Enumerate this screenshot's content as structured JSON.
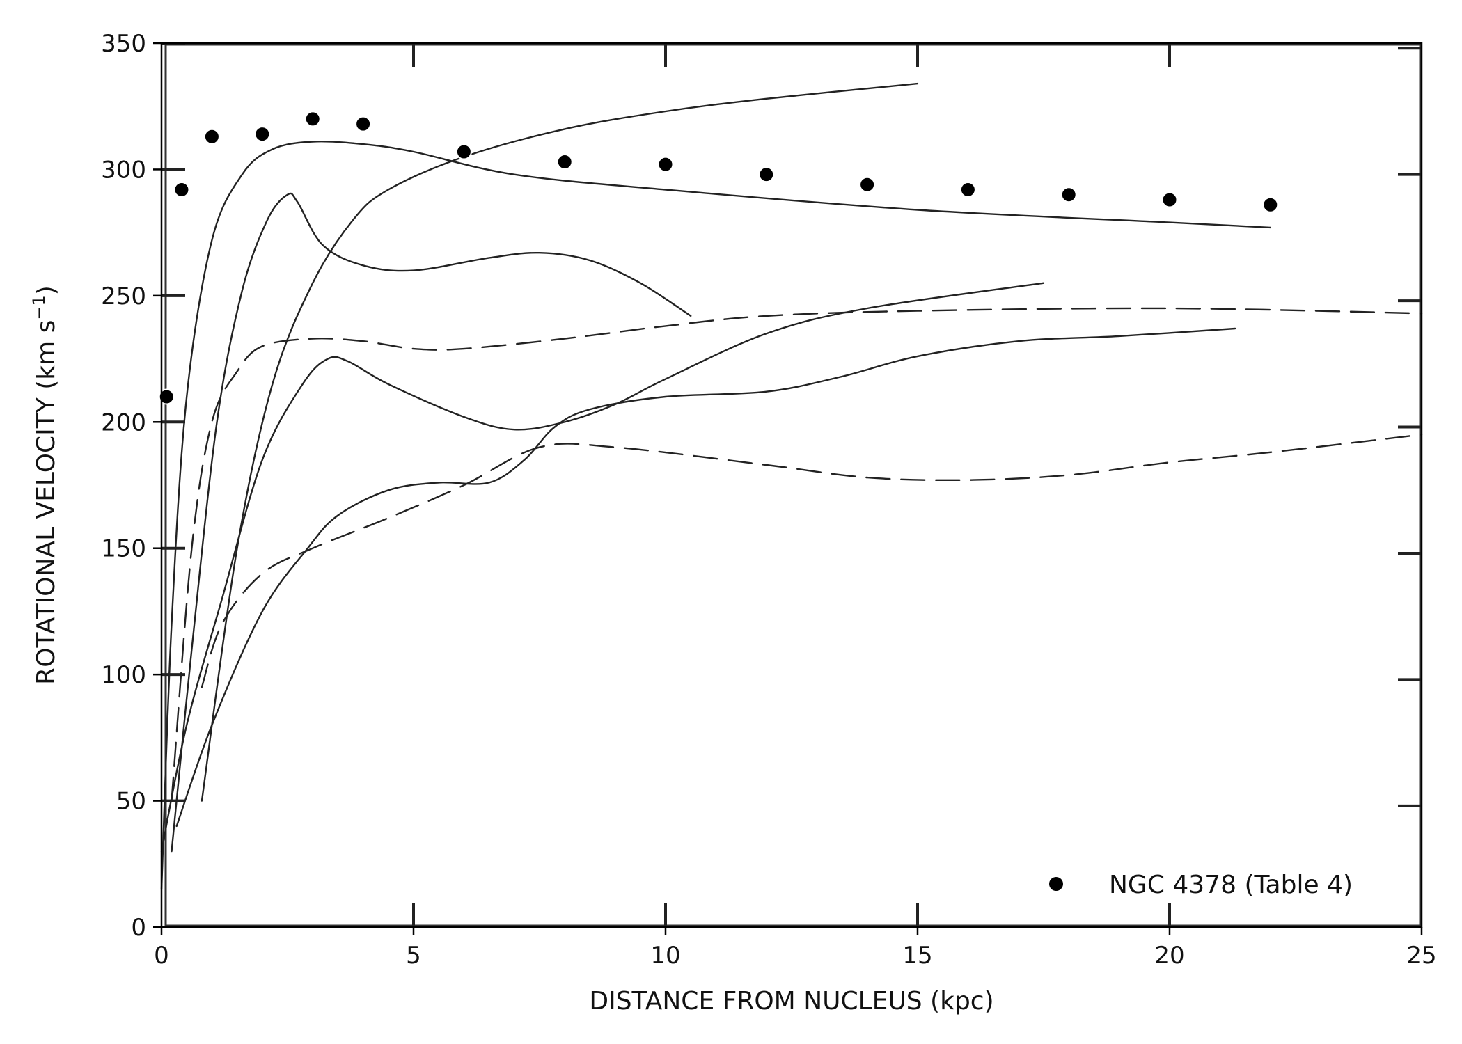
{
  "chart_data": {
    "type": "line",
    "xlabel": "DISTANCE FROM NUCLEUS (kpc)",
    "ylabel_main": "ROTATIONAL VELOCITY (km s",
    "ylabel_sup": "−1",
    "ylabel_close": ")",
    "xlim": [
      0,
      25
    ],
    "ylim": [
      0,
      350
    ],
    "xticks": [
      0,
      5,
      10,
      15,
      20,
      25
    ],
    "yticks": [
      0,
      50,
      100,
      150,
      200,
      250,
      300,
      350
    ],
    "grid": false,
    "legend_position": "lower-right",
    "points_series": {
      "name": "NGC 4378 (Table 4)",
      "color": "#000000",
      "points": [
        [
          0.1,
          210
        ],
        [
          0.4,
          292
        ],
        [
          1,
          313
        ],
        [
          2,
          314
        ],
        [
          3,
          320
        ],
        [
          4,
          318
        ],
        [
          6,
          307
        ],
        [
          8,
          303
        ],
        [
          10,
          302
        ],
        [
          12,
          298
        ],
        [
          14,
          294
        ],
        [
          16,
          292
        ],
        [
          18,
          290
        ],
        [
          20,
          288
        ],
        [
          22,
          286
        ]
      ]
    },
    "curves": [
      {
        "style": "solid",
        "points": [
          [
            0,
            15
          ],
          [
            0.2,
            120
          ],
          [
            0.5,
            210
          ],
          [
            1,
            272
          ],
          [
            1.6,
            298
          ],
          [
            2.2,
            308
          ],
          [
            3,
            311
          ],
          [
            4,
            310
          ],
          [
            5,
            307
          ],
          [
            7,
            298
          ],
          [
            10,
            292
          ],
          [
            15,
            284
          ],
          [
            20,
            279
          ],
          [
            22,
            277
          ]
        ]
      },
      {
        "style": "solid",
        "points": [
          [
            0.2,
            30
          ],
          [
            0.6,
            110
          ],
          [
            1.1,
            200
          ],
          [
            1.6,
            252
          ],
          [
            2.1,
            280
          ],
          [
            2.5,
            290
          ],
          [
            2.7,
            287
          ],
          [
            3.2,
            270
          ],
          [
            4,
            262
          ],
          [
            5,
            260
          ],
          [
            6.5,
            265
          ],
          [
            7.5,
            267
          ],
          [
            8.5,
            264
          ],
          [
            9.5,
            255
          ],
          [
            10.5,
            242
          ]
        ]
      },
      {
        "style": "solid",
        "points": [
          [
            0.8,
            50
          ],
          [
            1.5,
            150
          ],
          [
            2.2,
            215
          ],
          [
            3,
            255
          ],
          [
            3.8,
            280
          ],
          [
            4.5,
            292
          ],
          [
            6,
            305
          ],
          [
            8,
            316
          ],
          [
            10,
            323
          ],
          [
            12,
            328
          ],
          [
            15,
            334
          ]
        ]
      },
      {
        "style": "solid",
        "points": [
          [
            0,
            30
          ],
          [
            0.5,
            80
          ],
          [
            1.2,
            130
          ],
          [
            2,
            185
          ],
          [
            2.8,
            215
          ],
          [
            3.3,
            225
          ],
          [
            3.7,
            224
          ],
          [
            4.5,
            215
          ],
          [
            6,
            202
          ],
          [
            7,
            197
          ],
          [
            8,
            200
          ],
          [
            9,
            207
          ],
          [
            10,
            217
          ],
          [
            12,
            235
          ],
          [
            14,
            245
          ],
          [
            17.5,
            255
          ]
        ]
      },
      {
        "style": "solid",
        "points": [
          [
            0.3,
            40
          ],
          [
            1,
            80
          ],
          [
            2,
            125
          ],
          [
            2.9,
            150
          ],
          [
            3.5,
            163
          ],
          [
            4.5,
            173
          ],
          [
            5.5,
            176
          ],
          [
            6.5,
            176
          ],
          [
            7.2,
            185
          ],
          [
            7.8,
            198
          ],
          [
            8.5,
            205
          ],
          [
            10,
            210
          ],
          [
            12,
            212
          ],
          [
            13.5,
            218
          ],
          [
            15,
            226
          ],
          [
            17,
            232
          ],
          [
            19,
            234
          ],
          [
            21.3,
            237
          ]
        ]
      },
      {
        "style": "dashed",
        "points": [
          [
            0.2,
            50
          ],
          [
            0.6,
            150
          ],
          [
            1,
            200
          ],
          [
            1.5,
            220
          ],
          [
            2,
            230
          ],
          [
            3,
            233
          ],
          [
            4,
            232
          ],
          [
            5,
            229
          ],
          [
            6,
            229
          ],
          [
            8,
            233
          ],
          [
            10,
            238
          ],
          [
            12,
            242
          ],
          [
            15,
            244
          ],
          [
            20,
            245
          ],
          [
            25,
            243
          ]
        ]
      },
      {
        "style": "dashed",
        "points": [
          [
            0.8,
            95
          ],
          [
            1.2,
            120
          ],
          [
            2,
            140
          ],
          [
            3,
            150
          ],
          [
            4.5,
            162
          ],
          [
            6,
            175
          ],
          [
            7.5,
            190
          ],
          [
            9,
            190
          ],
          [
            12,
            183
          ],
          [
            14,
            178
          ],
          [
            16,
            177
          ],
          [
            18,
            179
          ],
          [
            20,
            184
          ],
          [
            22,
            188
          ],
          [
            25,
            195
          ]
        ]
      }
    ]
  }
}
